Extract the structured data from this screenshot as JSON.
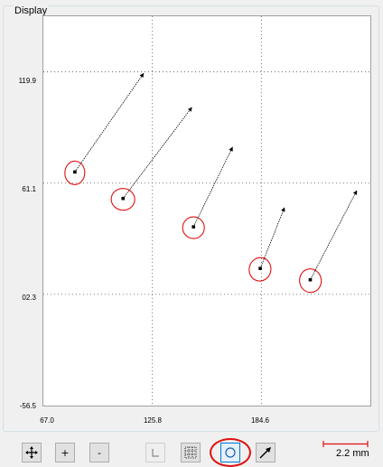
{
  "panel": {
    "title": "Display"
  },
  "axes": {
    "y_ticks": [
      "119.9",
      "61.1",
      "02.3",
      "-56.5"
    ],
    "x_ticks": [
      "67.0",
      "125.8",
      "184.6"
    ]
  },
  "chart_data": {
    "type": "scatter",
    "xlim": [
      67.0,
      243.4
    ],
    "ylim": [
      -56.5,
      149.3
    ],
    "grid": true,
    "x_ticks": [
      67.0,
      125.8,
      184.6
    ],
    "y_ticks": [
      -56.5,
      2.3,
      61.1,
      119.9
    ],
    "points": [
      {
        "x": 84,
        "y": 67,
        "dx": 37,
        "dy": 52
      },
      {
        "x": 110,
        "y": 53,
        "dx": 37,
        "dy": 48
      },
      {
        "x": 148,
        "y": 38,
        "dx": 21,
        "dy": 42
      },
      {
        "x": 184,
        "y": 16,
        "dx": 13,
        "dy": 32
      },
      {
        "x": 211,
        "y": 10,
        "dx": 25,
        "dy": 47
      }
    ]
  },
  "toolbar": {
    "scale_label": "2.2 mm"
  },
  "icons": {
    "pan": "move-arrows-icon",
    "zoom_in": "plus-icon",
    "zoom_out": "minus-icon",
    "measure": "l-shape-icon",
    "grid": "grid-dots-icon",
    "circle": "circle-icon",
    "vector": "arrow-icon"
  },
  "colors": {
    "highlight": "#e01010",
    "marker": "#000000"
  }
}
